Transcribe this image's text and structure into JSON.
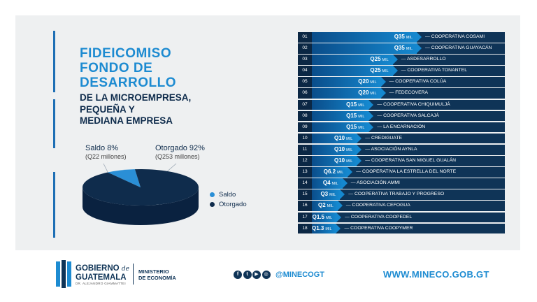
{
  "title": {
    "line1": "FIDEICOMISO",
    "line2": "FONDO DE",
    "line3": "DESARROLLO"
  },
  "subtitle": {
    "line1": "DE LA MICROEMPRESA,",
    "line2": "PEQUEÑA Y",
    "line3": "MEDIANA EMPRESA"
  },
  "pie": {
    "saldo_label": "Saldo 8%",
    "saldo_sub": "(Q22 millones)",
    "otorgado_label": "Otorgado 92%",
    "otorgado_sub": "(Q253 millones)"
  },
  "legend": {
    "saldo": "Saldo",
    "otorgado": "Otorgado"
  },
  "colors": {
    "saldo": "#2a8fd6",
    "otorgado": "#0f2c4c",
    "accent": "#1d8bd1"
  },
  "chart_data": [
    {
      "type": "pie",
      "categories": [
        "Saldo",
        "Otorgado"
      ],
      "values": [
        8,
        92
      ],
      "amounts_millions": [
        22,
        253
      ],
      "legend_position": "right"
    },
    {
      "type": "bar",
      "categories": [
        "COOPERATIVA COSAMI",
        "COOPERATIVA GUAYACÁN",
        "ASDESARROLLO",
        "COOPERATIVA TONANTEL",
        "COOPERATIVA COLÚA",
        "FEDECOVERA",
        "COOPERATIVA CHIQUIMULJÁ",
        "COOPERATIVA SALCAJÁ",
        "LA ENCARNACIÓN",
        "CREDIGUATE",
        "ASOCIACIÓN AYNLA",
        "COOPERATIVA SAN MIGUEL GUALÁN",
        "COOPERATIVA LA ESTRELLA DEL NORTE",
        "ASOCIACIÓN AMMI",
        "COOPERATIVA TRABAJO Y PROGRESO",
        "COOPERATIVA CEFOGUA",
        "COOPERATIVA COOPEDEL",
        "COOPERATIVA COOPYMER"
      ],
      "values": [
        35,
        35,
        25,
        25,
        20,
        20,
        15,
        15,
        15,
        10,
        10,
        10,
        6.2,
        4,
        3,
        2,
        1.5,
        1.3
      ],
      "unit": "MIL"
    }
  ],
  "rows": [
    {
      "num": "01",
      "amount": "Q35",
      "unit": "MIL",
      "name": "COOPERATIVA COSAMI"
    },
    {
      "num": "02",
      "amount": "Q35",
      "unit": "MIL",
      "name": "COOPERATIVA GUAYACÁN"
    },
    {
      "num": "03",
      "amount": "Q25",
      "unit": "MIL",
      "name": "ASDESARROLLO"
    },
    {
      "num": "04",
      "amount": "Q25",
      "unit": "MIL",
      "name": "COOPERATIVA TONANTEL"
    },
    {
      "num": "05",
      "amount": "Q20",
      "unit": "MIL",
      "name": "COOPERATIVA COLÚA"
    },
    {
      "num": "06",
      "amount": "Q20",
      "unit": "MIL",
      "name": "FEDECOVERA"
    },
    {
      "num": "07",
      "amount": "Q15",
      "unit": "MIL",
      "name": "COOPERATIVA CHIQUIMULJÁ"
    },
    {
      "num": "08",
      "amount": "Q15",
      "unit": "MIL",
      "name": "COOPERATIVA SALCAJÁ"
    },
    {
      "num": "09",
      "amount": "Q15",
      "unit": "MIL",
      "name": "LA ENCARNACIÓN"
    },
    {
      "num": "10",
      "amount": "Q10",
      "unit": "MIL",
      "name": "CREDIGUATE"
    },
    {
      "num": "11",
      "amount": "Q10",
      "unit": "MIL",
      "name": "ASOCIACIÓN AYNLA"
    },
    {
      "num": "12",
      "amount": "Q10",
      "unit": "MIL",
      "name": "COOPERATIVA SAN MIGUEL GUALÁN"
    },
    {
      "num": "13",
      "amount": "Q6.2",
      "unit": "MIL",
      "name": "COOPERATIVA LA ESTRELLA DEL NORTE"
    },
    {
      "num": "14",
      "amount": "Q4",
      "unit": "MIL",
      "name": "ASOCIACIÓN AMMI"
    },
    {
      "num": "15",
      "amount": "Q3",
      "unit": "MIL",
      "name": "COOPERATIVA TRABAJO Y PROGRESO"
    },
    {
      "num": "16",
      "amount": "Q2",
      "unit": "MIL",
      "name": "COOPERATIVA CEFOGUA"
    },
    {
      "num": "17",
      "amount": "Q1.5",
      "unit": "MIL",
      "name": "COOPERATIVA COOPEDEL"
    },
    {
      "num": "18",
      "amount": "Q1.3",
      "unit": "MIL",
      "name": "COOPERATIVA COOPYMER"
    }
  ],
  "footer": {
    "gob_line1": "GOBIERNO",
    "gob_de": "de",
    "gob_line2": "GUATEMALA",
    "gob_tiny": "DR. ALEJANDRO GIAMMATTEI",
    "min_line1": "MINISTERIO",
    "min_line2": "DE ECONOMÍA",
    "social_icons": [
      "facebook-icon",
      "twitter-icon",
      "youtube-icon",
      "instagram-icon"
    ],
    "handle": "@MINECOGT",
    "website": "WWW.MINECO.GOB.GT"
  }
}
